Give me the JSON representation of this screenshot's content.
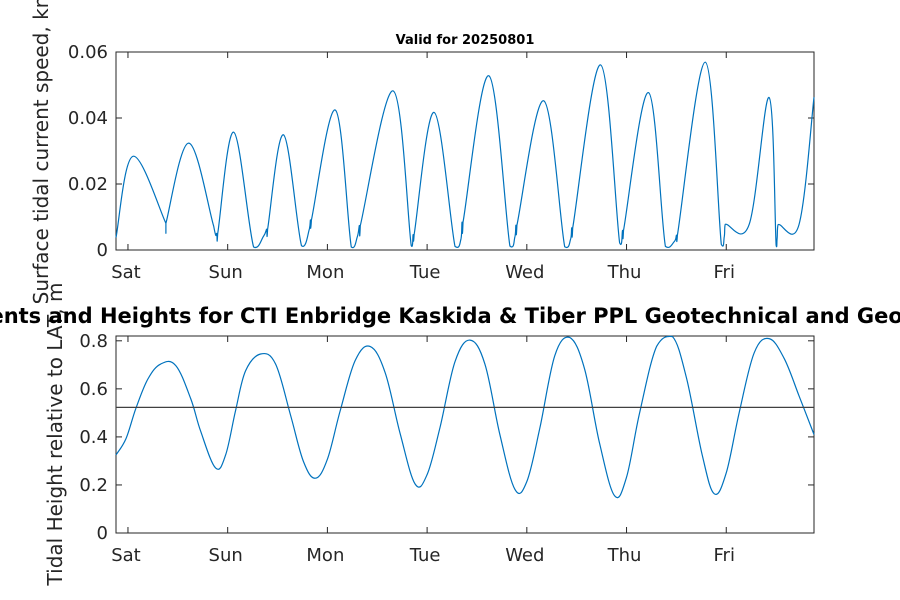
{
  "chart_data": [
    {
      "type": "line",
      "title": "Valid for 20250801",
      "ylabel": "Surface tidal current speed, kn",
      "ylim": [
        0,
        0.06
      ],
      "yticks": [
        "0",
        "0.02",
        "0.04",
        "0.06"
      ],
      "xlim": [
        0,
        7
      ],
      "x_ticks": [
        "Sat",
        "Sun",
        "Mon",
        "Tue",
        "Wed",
        "Thu",
        "Fri"
      ],
      "series": [
        {
          "color": "#0072bd",
          "x": [
            0.0,
            0.17,
            0.5,
            0.5,
            0.73,
            0.98,
            1.01,
            1.02,
            1.18,
            1.38,
            1.48,
            1.51,
            1.52,
            1.68,
            1.86,
            1.94,
            1.95,
            1.96,
            2.2,
            2.36,
            2.42,
            2.44,
            2.45,
            2.78,
            2.96,
            2.98,
            2.99,
            3.19,
            3.4,
            3.46,
            3.47,
            3.48,
            3.74,
            3.95,
            4.0,
            4.01,
            4.02,
            4.29,
            4.5,
            4.56,
            4.57,
            4.58,
            4.86,
            5.05,
            5.08,
            5.09,
            5.34,
            5.51,
            5.6,
            5.62,
            5.63,
            5.91,
            6.07,
            6.1,
            6.11,
            6.35,
            6.55,
            6.62,
            6.63,
            6.64,
            6.85,
            7.0
          ],
          "y": [
            0.0038,
            0.0284,
            0.0081,
            0.0081,
            0.0324,
            0.0072,
            0.005,
            0.005,
            0.0357,
            0.0009,
            0.0042,
            0.0063,
            0.0063,
            0.0349,
            0.0013,
            0.0064,
            0.0091,
            0.0091,
            0.0424,
            0.0009,
            0.004,
            0.0074,
            0.0074,
            0.0482,
            0.0014,
            0.0046,
            0.0046,
            0.0417,
            0.0011,
            0.0034,
            0.0084,
            0.0084,
            0.0528,
            0.0012,
            0.004,
            0.0075,
            0.0075,
            0.0452,
            0.001,
            0.0034,
            0.0067,
            0.0067,
            0.0561,
            0.0022,
            0.0059,
            0.0059,
            0.0477,
            0.0011,
            0.0026,
            0.0045,
            0.0045,
            0.0569,
            0.0017,
            0.0041,
            0.0078,
            0.0078,
            0.0462,
            0.0015,
            0.0034,
            0.0077,
            0.0077,
            0.0463
          ]
        }
      ]
    },
    {
      "type": "line",
      "title": "Surface Currents and Heights for CTI Enbridge  Kaskida & Tiber PPL Geotechnical and Geophysical Survey",
      "ylabel": "Tidal Height relative to LAT, m",
      "ylim": [
        0,
        0.82
      ],
      "yticks": [
        "0",
        "0.2",
        "0.4",
        "0.6",
        "0.8"
      ],
      "xlim": [
        0,
        7
      ],
      "x_ticks": [
        "Sat",
        "Sun",
        "Mon",
        "Tue",
        "Wed",
        "Thu",
        "Fri"
      ],
      "series": [
        {
          "color": "#0072bd",
          "x": [
            0.0,
            0.1,
            0.2,
            0.32,
            0.45,
            0.6,
            0.75,
            0.85,
            1.0,
            1.1,
            1.2,
            1.3,
            1.45,
            1.6,
            1.75,
            1.88,
            2.0,
            2.12,
            2.25,
            2.4,
            2.55,
            2.7,
            2.85,
            3.0,
            3.12,
            3.25,
            3.4,
            3.55,
            3.7,
            3.85,
            4.0,
            4.12,
            4.25,
            4.4,
            4.55,
            4.7,
            4.85,
            5.0,
            5.12,
            5.25,
            5.42,
            5.58,
            5.72,
            5.88,
            6.0,
            6.12,
            6.25,
            6.4,
            6.55,
            6.7,
            6.85,
            7.0
          ],
          "y": [
            0.325,
            0.393,
            0.519,
            0.641,
            0.704,
            0.697,
            0.558,
            0.422,
            0.27,
            0.326,
            0.512,
            0.675,
            0.745,
            0.704,
            0.491,
            0.297,
            0.228,
            0.307,
            0.512,
            0.719,
            0.776,
            0.667,
            0.413,
            0.204,
            0.243,
            0.441,
            0.713,
            0.803,
            0.703,
            0.409,
            0.182,
            0.214,
            0.436,
            0.737,
            0.814,
            0.681,
            0.373,
            0.155,
            0.232,
            0.498,
            0.776,
            0.818,
            0.647,
            0.323,
            0.163,
            0.251,
            0.501,
            0.75,
            0.809,
            0.727,
            0.571,
            0.41
          ]
        },
        {
          "color": "#404040",
          "x": [
            0,
            7
          ],
          "y": [
            0.523,
            0.523
          ]
        }
      ]
    }
  ]
}
